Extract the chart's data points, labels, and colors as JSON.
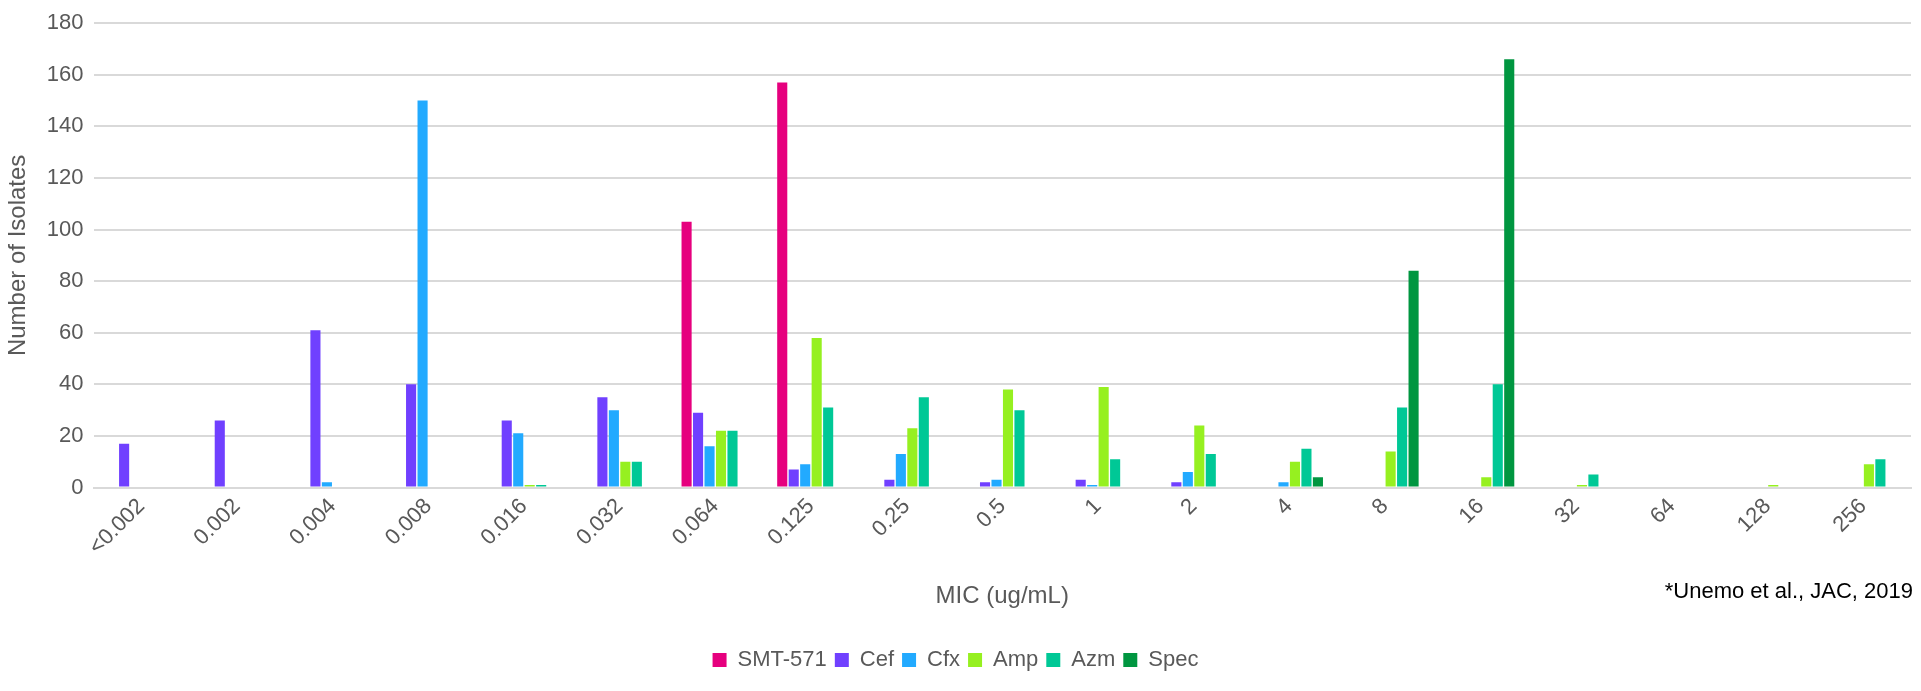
{
  "chart_data": {
    "type": "bar",
    "xlabel": "MIC (ug/mL)",
    "ylabel": "Number of Isolates",
    "categories": [
      "<0.002",
      "0.002",
      "0.004",
      "0.008",
      "0.016",
      "0.032",
      "0.064",
      "0.125",
      "0.25",
      "0.5",
      "1",
      "2",
      "4",
      "8",
      "16",
      "32",
      "64",
      "128",
      "256"
    ],
    "series": [
      {
        "name": "SMT-571",
        "color": "#e6007e",
        "values": [
          null,
          null,
          null,
          null,
          null,
          null,
          103,
          157,
          null,
          null,
          null,
          null,
          null,
          null,
          null,
          null,
          null,
          null,
          null
        ]
      },
      {
        "name": "Cef",
        "color": "#7040ff",
        "values": [
          17,
          26,
          61,
          40,
          26,
          35,
          29,
          7,
          3,
          2,
          3,
          2,
          null,
          null,
          null,
          null,
          null,
          null,
          null
        ]
      },
      {
        "name": "Cfx",
        "color": "#22aaff",
        "values": [
          null,
          null,
          2,
          150,
          21,
          30,
          16,
          9,
          13,
          3,
          1,
          6,
          2,
          null,
          null,
          null,
          null,
          null,
          null
        ]
      },
      {
        "name": "Amp",
        "color": "#96f020",
        "values": [
          null,
          null,
          null,
          null,
          1,
          10,
          22,
          58,
          23,
          38,
          39,
          24,
          10,
          14,
          4,
          1,
          null,
          1,
          9
        ]
      },
      {
        "name": "Azm",
        "color": "#00c896",
        "values": [
          null,
          null,
          null,
          null,
          1,
          10,
          22,
          31,
          35,
          30,
          11,
          13,
          15,
          31,
          40,
          5,
          null,
          null,
          11
        ]
      },
      {
        "name": "Spec",
        "color": "#009640",
        "values": [
          null,
          null,
          null,
          null,
          null,
          null,
          null,
          null,
          null,
          null,
          null,
          null,
          4,
          84,
          166,
          null,
          null,
          null,
          null
        ]
      }
    ],
    "ylim": [
      0,
      180
    ],
    "yticks": [
      0,
      20,
      40,
      60,
      80,
      100,
      120,
      140,
      160,
      180
    ],
    "grid": "y",
    "legend": "bottom",
    "annotations": [
      "*Unemo et al., JAC, 2019"
    ]
  }
}
